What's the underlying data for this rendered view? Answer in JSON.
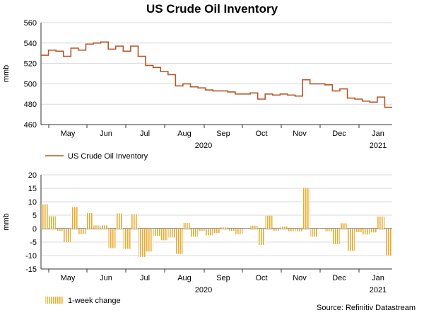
{
  "title": "US Crude Oil Inventory",
  "source": "Source: Refinitiv Datastream",
  "chart_data": [
    {
      "type": "line",
      "title": "US Crude Oil Inventory",
      "ylabel": "mmb",
      "xlabel": "2020",
      "ylim": [
        460,
        560
      ],
      "yticks": [
        460,
        480,
        500,
        520,
        540,
        560
      ],
      "months": [
        "May",
        "Jun",
        "Jul",
        "Aug",
        "Sep",
        "Oct",
        "Nov",
        "Dec",
        "Jan"
      ],
      "year_labels": [
        "2020",
        "2021"
      ],
      "legend": "US Crude Oil Inventory",
      "color": "#b5572a",
      "series": [
        {
          "name": "US Crude Oil Inventory",
          "values": [
            528,
            533,
            532,
            527,
            535,
            533,
            539,
            540,
            541,
            534,
            537,
            532,
            537,
            527,
            518,
            516,
            512,
            509,
            498,
            500,
            497,
            496,
            494,
            493,
            493,
            492,
            490,
            490,
            491,
            485,
            490,
            489,
            490,
            489,
            488,
            504,
            500,
            500,
            499,
            493,
            495,
            486,
            485,
            483,
            482,
            487,
            477
          ]
        }
      ]
    },
    {
      "type": "bar",
      "title": "",
      "ylabel": "mmb",
      "xlabel": "2020",
      "ylim": [
        -15,
        20
      ],
      "yticks": [
        -15,
        -10,
        -5,
        0,
        5,
        10,
        15,
        20
      ],
      "months": [
        "May",
        "Jun",
        "Jul",
        "Aug",
        "Sep",
        "Oct",
        "Nov",
        "Dec",
        "Jan"
      ],
      "year_labels": [
        "2020",
        "2021"
      ],
      "legend": "1-week change",
      "color": "#e9ab2c",
      "series": [
        {
          "name": "1-week change",
          "values": [
            9.0,
            4.6,
            -0.8,
            -5.0,
            8.0,
            -2.1,
            5.8,
            1.2,
            1.2,
            -7.2,
            5.7,
            -7.5,
            5.4,
            -10.5,
            -8.5,
            -2.7,
            -4.3,
            -3.3,
            -9.4,
            2.1,
            -3.0,
            -0.8,
            -2.5,
            -1.6,
            0.5,
            -0.8,
            -2.0,
            0.0,
            1.1,
            -6.0,
            4.8,
            -0.8,
            0.8,
            -1.0,
            -1.0,
            15.2,
            -3.0,
            0.0,
            -1.0,
            -5.8,
            2.0,
            -8.3,
            -1.3,
            -2.2,
            -1.4,
            4.5,
            -10.0
          ]
        }
      ]
    }
  ]
}
